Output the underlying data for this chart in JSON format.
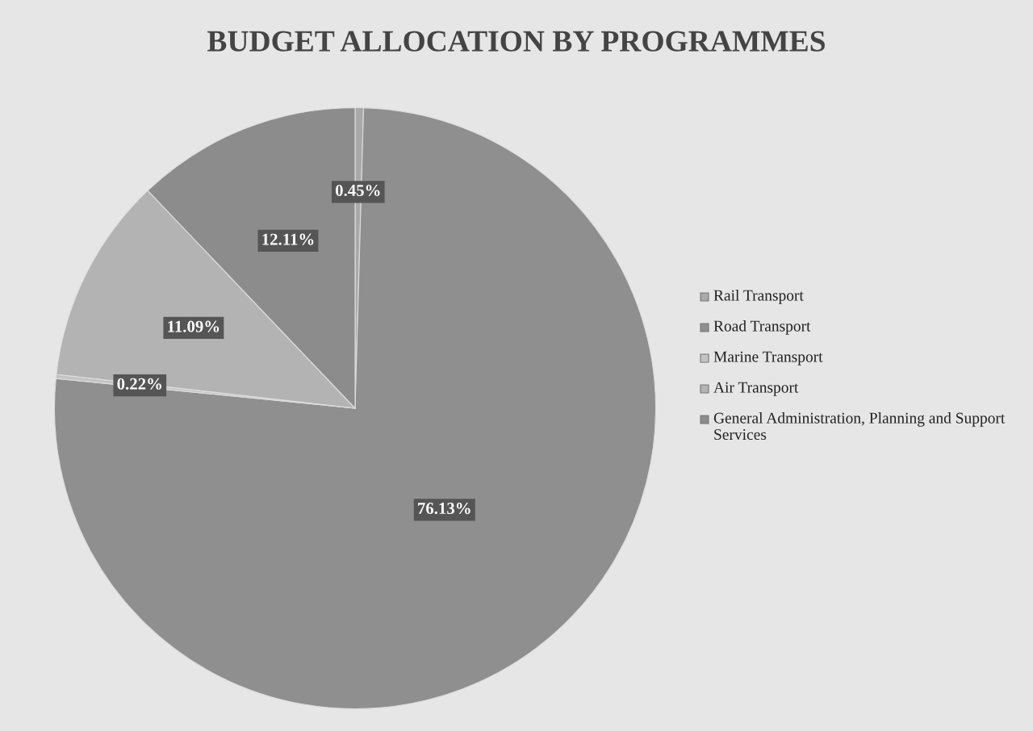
{
  "chart_data": {
    "type": "pie",
    "title": "BUDGET ALLOCATION BY PROGRAMMES",
    "categories": [
      "Rail Transport",
      "Road Transport",
      "Marine Transport",
      "Air Transport",
      "General Administration, Planning and Support Services"
    ],
    "values": [
      0.45,
      76.13,
      0.22,
      11.09,
      12.11
    ],
    "value_labels": [
      "0.45%",
      "76.13%",
      "0.22%",
      "11.09%",
      "12.11%"
    ],
    "colors": [
      "#a9a9a9",
      "#8f8f8f",
      "#c4c4c4",
      "#b3b3b3",
      "#8c8c8c"
    ],
    "legend": "right"
  }
}
